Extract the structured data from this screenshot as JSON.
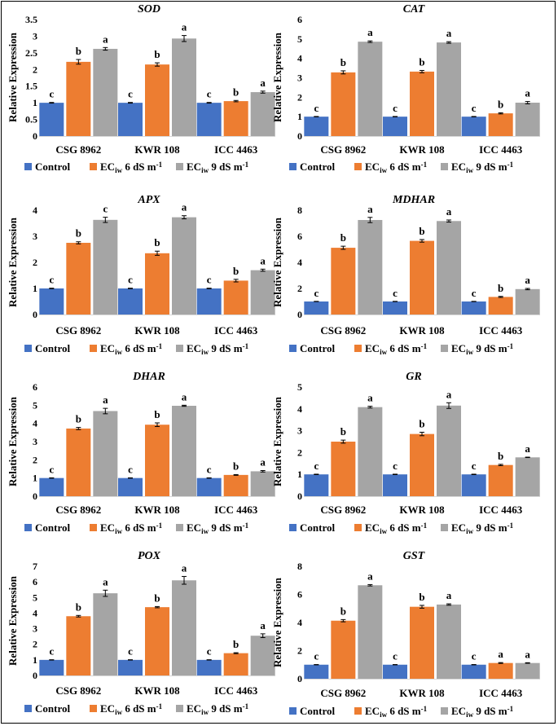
{
  "figure": {
    "y_axis_label": "Relative Expression",
    "categories": [
      "CSG 8962",
      "KWR 108",
      "ICC 4463"
    ],
    "legend": [
      {
        "name": "Control",
        "color": "#4472c4"
      },
      {
        "name": "ECiw 6 dS m-1",
        "base": "EC",
        "sub": "iw",
        "rest": " 6 dS m",
        "sup": "-1",
        "color": "#ed7d31"
      },
      {
        "name": "ECiw 9 dS m-1",
        "base": "EC",
        "sub": "iw",
        "rest": " 9 dS m",
        "sup": "-1",
        "color": "#a5a5a5"
      }
    ]
  },
  "chart_data": [
    {
      "type": "bar",
      "title": "SOD",
      "ylabel": "Relative Expression",
      "categories": [
        "CSG 8962",
        "KWR 108",
        "ICC 4463"
      ],
      "ylim": [
        0,
        3.5
      ],
      "yticks": [
        0,
        0.5,
        1,
        1.5,
        2,
        2.5,
        3,
        3.5
      ],
      "series": [
        {
          "name": "Control",
          "values": [
            1.0,
            1.0,
            1.0
          ],
          "errors": [
            0.01,
            0.01,
            0.01
          ],
          "labels": [
            "c",
            "c",
            "c"
          ]
        },
        {
          "name": "ECiw 6 dS m-1",
          "values": [
            2.23,
            2.15,
            1.05
          ],
          "errors": [
            0.07,
            0.05,
            0.02
          ],
          "labels": [
            "b",
            "b",
            "b"
          ]
        },
        {
          "name": "ECiw 9 dS m-1",
          "values": [
            2.62,
            2.93,
            1.32
          ],
          "errors": [
            0.04,
            0.09,
            0.03
          ],
          "labels": [
            "a",
            "a",
            "a"
          ]
        }
      ]
    },
    {
      "type": "bar",
      "title": "CAT",
      "ylabel": "Relative Expression",
      "categories": [
        "CSG 8962",
        "KWR 108",
        "ICC 4463"
      ],
      "ylim": [
        0,
        6
      ],
      "yticks": [
        0,
        1,
        2,
        3,
        4,
        5,
        6
      ],
      "series": [
        {
          "name": "Control",
          "values": [
            1.0,
            1.0,
            1.0
          ],
          "errors": [
            0.01,
            0.01,
            0.01
          ],
          "labels": [
            "c",
            "c",
            "c"
          ]
        },
        {
          "name": "ECiw 6 dS m-1",
          "values": [
            3.28,
            3.32,
            1.17
          ],
          "errors": [
            0.08,
            0.06,
            0.03
          ],
          "labels": [
            "b",
            "b",
            "b"
          ]
        },
        {
          "name": "ECiw 9 dS m-1",
          "values": [
            4.86,
            4.82,
            1.72
          ],
          "errors": [
            0.04,
            0.04,
            0.06
          ],
          "labels": [
            "a",
            "a",
            "a"
          ]
        }
      ]
    },
    {
      "type": "bar",
      "title": "APX",
      "ylabel": "Relative Expression",
      "categories": [
        "CSG 8962",
        "KWR 108",
        "ICC 4463"
      ],
      "ylim": [
        0,
        4
      ],
      "yticks": [
        0,
        1,
        2,
        3,
        4
      ],
      "series": [
        {
          "name": "Control",
          "values": [
            1.0,
            1.0,
            1.0
          ],
          "errors": [
            0.01,
            0.01,
            0.01
          ],
          "labels": [
            "c",
            "c",
            "c"
          ]
        },
        {
          "name": "ECiw 6 dS m-1",
          "values": [
            2.75,
            2.35,
            1.3
          ],
          "errors": [
            0.04,
            0.08,
            0.05
          ],
          "labels": [
            "b",
            "b",
            "b"
          ]
        },
        {
          "name": "ECiw 9 dS m-1",
          "values": [
            3.63,
            3.73,
            1.7
          ],
          "errors": [
            0.1,
            0.06,
            0.04
          ],
          "labels": [
            "c",
            "a",
            "a"
          ]
        }
      ]
    },
    {
      "type": "bar",
      "title": "MDHAR",
      "ylabel": "Relative Expression",
      "categories": [
        "CSG 8962",
        "KWR 108",
        "ICC 4463"
      ],
      "ylim": [
        0,
        8
      ],
      "yticks": [
        0,
        2,
        4,
        6,
        8
      ],
      "series": [
        {
          "name": "Control",
          "values": [
            1.0,
            1.0,
            1.0
          ],
          "errors": [
            0.01,
            0.01,
            0.01
          ],
          "labels": [
            "c",
            "c",
            "c"
          ]
        },
        {
          "name": "ECiw 6 dS m-1",
          "values": [
            5.12,
            5.65,
            1.35
          ],
          "errors": [
            0.12,
            0.1,
            0.04
          ],
          "labels": [
            "b",
            "b",
            "b"
          ]
        },
        {
          "name": "ECiw 9 dS m-1",
          "values": [
            7.25,
            7.17,
            1.95
          ],
          "errors": [
            0.2,
            0.08,
            0.05
          ],
          "labels": [
            "a",
            "a",
            "a"
          ]
        }
      ]
    },
    {
      "type": "bar",
      "title": "DHAR",
      "ylabel": "Relative Expression",
      "categories": [
        "CSG 8962",
        "KWR 108",
        "ICC 4463"
      ],
      "ylim": [
        0,
        6
      ],
      "yticks": [
        0,
        1,
        2,
        3,
        4,
        5,
        6
      ],
      "series": [
        {
          "name": "Control",
          "values": [
            1.0,
            1.0,
            1.0
          ],
          "errors": [
            0.01,
            0.01,
            0.01
          ],
          "labels": [
            "c",
            "c",
            "c"
          ]
        },
        {
          "name": "ECiw 6 dS m-1",
          "values": [
            3.72,
            3.93,
            1.17
          ],
          "errors": [
            0.06,
            0.1,
            0.02
          ],
          "labels": [
            "b",
            "b",
            "b"
          ]
        },
        {
          "name": "ECiw 9 dS m-1",
          "values": [
            4.68,
            4.97,
            1.37
          ],
          "errors": [
            0.15,
            0.03,
            0.04
          ],
          "labels": [
            "a",
            "a",
            "a"
          ]
        }
      ]
    },
    {
      "type": "bar",
      "title": "GR",
      "ylabel": "Relative Expression",
      "categories": [
        "CSG 8962",
        "KWR 108",
        "ICC 4463"
      ],
      "ylim": [
        0,
        5
      ],
      "yticks": [
        0,
        1,
        2,
        3,
        4,
        5
      ],
      "series": [
        {
          "name": "Control",
          "values": [
            1.0,
            1.0,
            1.0
          ],
          "errors": [
            0.01,
            0.01,
            0.01
          ],
          "labels": [
            "c",
            "c",
            "c"
          ]
        },
        {
          "name": "ECiw 6 dS m-1",
          "values": [
            2.5,
            2.85,
            1.43
          ],
          "errors": [
            0.07,
            0.08,
            0.03
          ],
          "labels": [
            "b",
            "b",
            "b"
          ]
        },
        {
          "name": "ECiw 9 dS m-1",
          "values": [
            4.08,
            4.15,
            1.78
          ],
          "errors": [
            0.04,
            0.13,
            0.01
          ],
          "labels": [
            "a",
            "a",
            "a"
          ]
        }
      ]
    },
    {
      "type": "bar",
      "title": "POX",
      "ylabel": "Relative Expression",
      "categories": [
        "CSG 8962",
        "KWR 108",
        "ICC 4463"
      ],
      "ylim": [
        0,
        7
      ],
      "yticks": [
        0,
        1,
        2,
        3,
        4,
        5,
        6,
        7
      ],
      "series": [
        {
          "name": "Control",
          "values": [
            1.0,
            1.0,
            1.0
          ],
          "errors": [
            0.01,
            0.01,
            0.01
          ],
          "labels": [
            "c",
            "c",
            "c"
          ]
        },
        {
          "name": "ECiw 6 dS m-1",
          "values": [
            3.8,
            4.38,
            1.43
          ],
          "errors": [
            0.05,
            0.04,
            0.03
          ],
          "labels": [
            "b",
            "b",
            "b"
          ]
        },
        {
          "name": "ECiw 9 dS m-1",
          "values": [
            5.27,
            6.1,
            2.55
          ],
          "errors": [
            0.2,
            0.25,
            0.12
          ],
          "labels": [
            "a",
            "a",
            "a"
          ]
        }
      ]
    },
    {
      "type": "bar",
      "title": "GST",
      "ylabel": "Relative Expression",
      "categories": [
        "CSG 8962",
        "KWR 108",
        "ICC 4463"
      ],
      "ylim": [
        0,
        8
      ],
      "yticks": [
        0,
        2,
        4,
        6,
        8
      ],
      "series": [
        {
          "name": "Control",
          "values": [
            1.0,
            1.0,
            1.0
          ],
          "errors": [
            0.01,
            0.01,
            0.01
          ],
          "labels": [
            "c",
            "c",
            "c"
          ]
        },
        {
          "name": "ECiw 6 dS m-1",
          "values": [
            4.13,
            5.12,
            1.12
          ],
          "errors": [
            0.08,
            0.1,
            0.03
          ],
          "labels": [
            "b",
            "b",
            "a"
          ]
        },
        {
          "name": "ECiw 9 dS m-1",
          "values": [
            6.65,
            5.28,
            1.12
          ],
          "errors": [
            0.05,
            0.05,
            0.02
          ],
          "labels": [
            "a",
            "a",
            "a"
          ]
        }
      ]
    }
  ]
}
